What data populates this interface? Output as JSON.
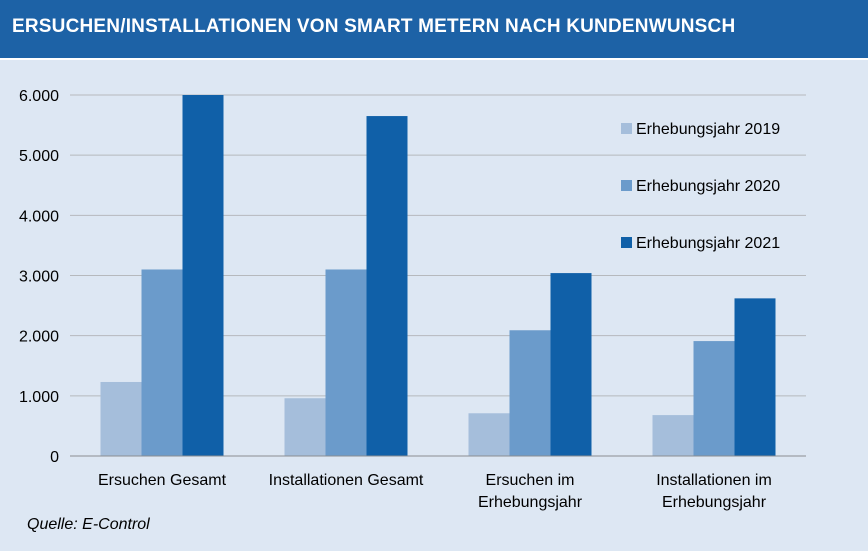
{
  "header": {
    "title": "ERSUCHEN/INSTALLATIONEN  VON SMART METERN NACH KUNDENWUNSCH"
  },
  "source": "Quelle: E-Control",
  "colors": {
    "header_bg": "#1d62a6",
    "background": "#dde7f3"
  },
  "chart_data": {
    "type": "bar",
    "title": "",
    "xlabel": "",
    "ylabel": "",
    "categories": [
      [
        "Ersuchen Gesamt"
      ],
      [
        "Installationen Gesamt"
      ],
      [
        "Ersuchen im",
        "Erhebungsjahr"
      ],
      [
        "Installationen im",
        "Erhebungsjahr"
      ]
    ],
    "series": [
      {
        "name": "Erhebungsjahr 2019",
        "color": "#a5bedb",
        "values": [
          1230,
          960,
          710,
          680
        ]
      },
      {
        "name": "Erhebungsjahr 2020",
        "color": "#6b9bcb",
        "values": [
          3100,
          3100,
          2090,
          1910
        ]
      },
      {
        "name": "Erhebungsjahr 2021",
        "color": "#1060a8",
        "values": [
          6000,
          5650,
          3040,
          2620
        ]
      }
    ],
    "ylim": [
      0,
      6000
    ],
    "yticks": [
      0,
      1000,
      2000,
      3000,
      4000,
      5000,
      6000
    ],
    "ytick_labels": [
      "0",
      "1.000",
      "2.000",
      "3.000",
      "4.000",
      "5.000",
      "6.000"
    ],
    "grid": true,
    "legend_position": "top-right"
  }
}
